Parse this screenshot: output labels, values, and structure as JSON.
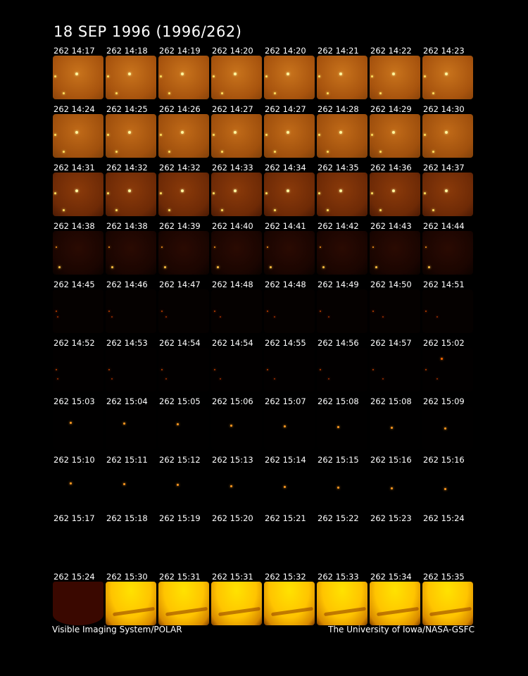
{
  "title": "18 SEP 1996  (1996/262)",
  "frames": [
    [
      "262 14:17",
      "262 14:18",
      "262 14:19",
      "262 14:20",
      "262 14:20",
      "262 14:21",
      "262 14:22",
      "262 14:23"
    ],
    [
      "262 14:24",
      "262 14:25",
      "262 14:26",
      "262 14:27",
      "262 14:27",
      "262 14:28",
      "262 14:29",
      "262 14:30"
    ],
    [
      "262 14:31",
      "262 14:32",
      "262 14:32",
      "262 14:33",
      "262 14:34",
      "262 14:35",
      "262 14:36",
      "262 14:37"
    ],
    [
      "262 14:38",
      "262 14:38",
      "262 14:39",
      "262 14:40",
      "262 14:41",
      "262 14:42",
      "262 14:43",
      "262 14:44"
    ],
    [
      "262 14:45",
      "262 14:46",
      "262 14:47",
      "262 14:48",
      "262 14:48",
      "262 14:49",
      "262 14:50",
      "262 14:51"
    ],
    [
      "262 14:52",
      "262 14:53",
      "262 14:54",
      "262 14:54",
      "262 14:55",
      "262 14:56",
      "262 14:57",
      "262 15:02"
    ],
    [
      "262 15:03",
      "262 15:04",
      "262 15:05",
      "262 15:06",
      "262 15:07",
      "262 15:08",
      "262 15:08",
      "262 15:09"
    ],
    [
      "262 15:10",
      "262 15:11",
      "262 15:12",
      "262 15:13",
      "262 15:14",
      "262 15:15",
      "262 15:16",
      "262 15:16"
    ],
    [
      "262 15:17",
      "262 15:18",
      "262 15:19",
      "262 15:20",
      "262 15:21",
      "262 15:22",
      "262 15:23",
      "262 15:24"
    ],
    [
      "262 15:24",
      "262 15:30",
      "262 15:31",
      "262 15:31",
      "262 15:32",
      "262 15:33",
      "262 15:34",
      "262 15:35"
    ]
  ],
  "footer": {
    "left": "Visible Imaging System/POLAR",
    "right": "The University of Iowa/NASA-GSFC"
  }
}
